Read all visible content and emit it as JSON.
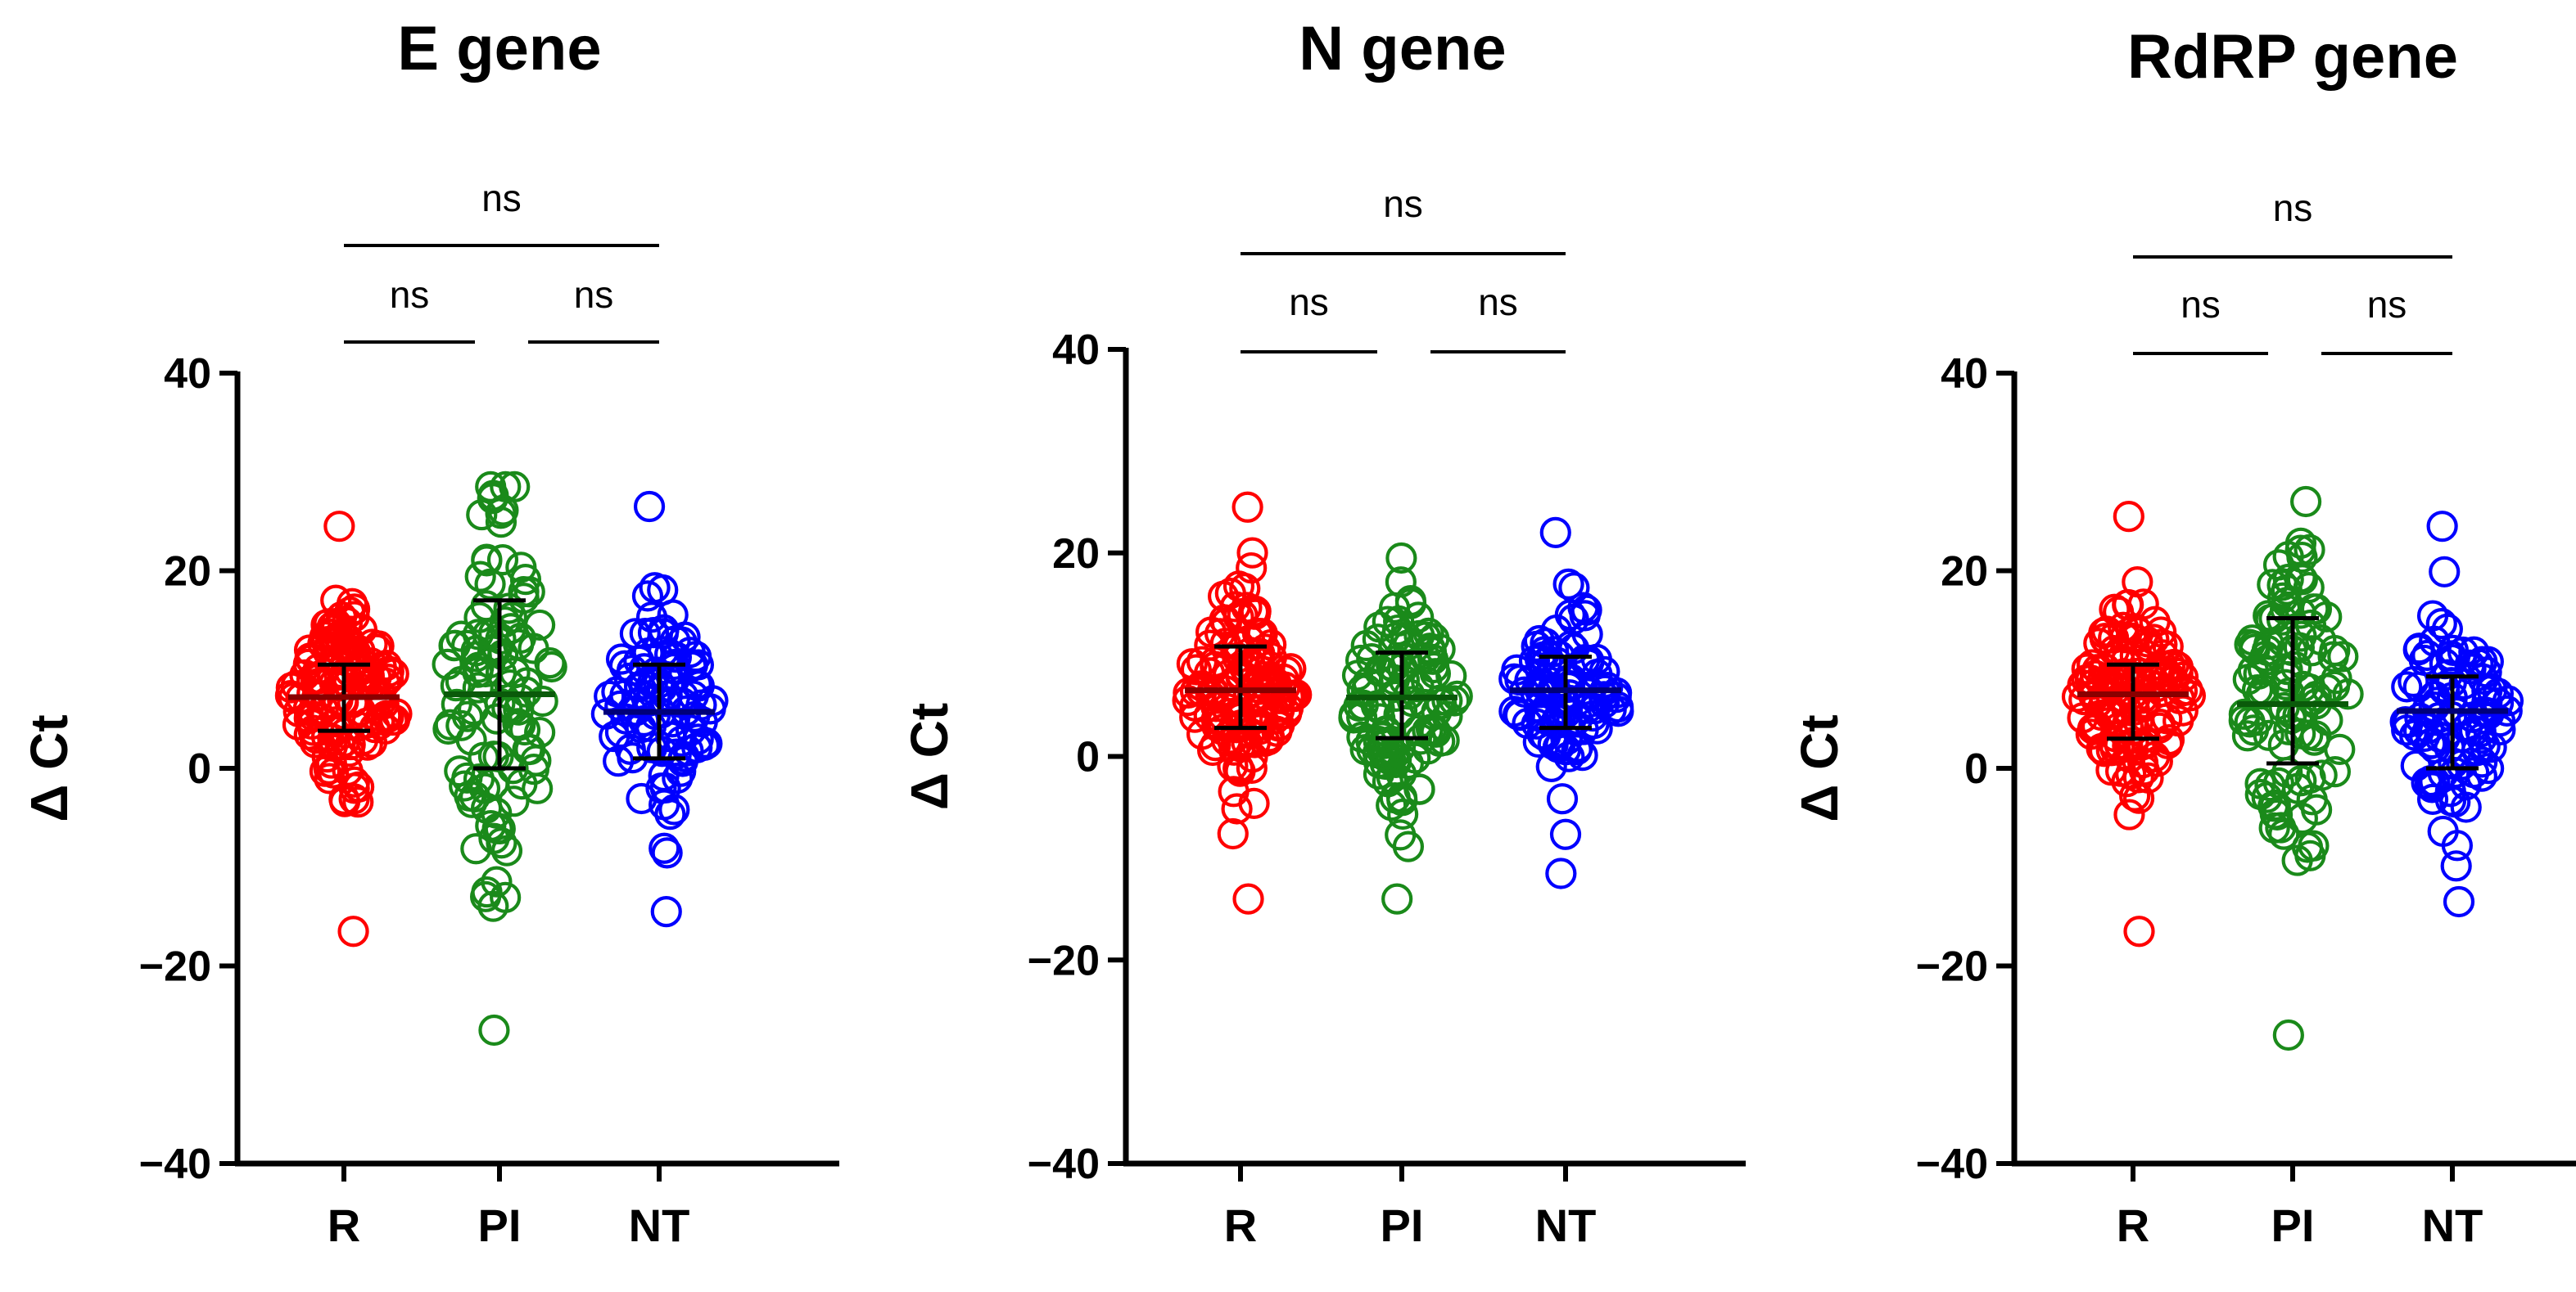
{
  "colors": {
    "R": "#ff0000",
    "PI": "#1a8a1a",
    "NT": "#0000ff",
    "axis": "#000000"
  },
  "chart_data": [
    {
      "type": "scatter",
      "title": "E gene",
      "ylabel": "Δ Ct",
      "ylim": [
        -40,
        40
      ],
      "yticks": [
        40,
        20,
        0,
        -20,
        -40
      ],
      "ytick_labels": [
        "40",
        "20",
        "0",
        "−20",
        "−40"
      ],
      "categories": [
        "R",
        "PI",
        "NT"
      ],
      "groups": [
        {
          "name": "R",
          "mean": 7.2,
          "sd_low": 3.8,
          "sd_high": 10.5,
          "n": 140,
          "min": -16.5,
          "max": 24.5
        },
        {
          "name": "PI",
          "mean": 7.5,
          "sd_low": 0.0,
          "sd_high": 17.0,
          "n": 110,
          "min": -26.5,
          "max": 28.5
        },
        {
          "name": "NT",
          "mean": 5.7,
          "sd_low": 1.0,
          "sd_high": 10.5,
          "n": 100,
          "min": -14.5,
          "max": 26.5
        }
      ],
      "comparisons": [
        {
          "pair": [
            "R",
            "NT"
          ],
          "label": "ns"
        },
        {
          "pair": [
            "R",
            "PI"
          ],
          "label": "ns"
        },
        {
          "pair": [
            "PI",
            "NT"
          ],
          "label": "ns"
        }
      ]
    },
    {
      "type": "scatter",
      "title": "N gene",
      "ylabel": "Δ Ct",
      "ylim": [
        -40,
        40
      ],
      "yticks": [
        40,
        20,
        0,
        -20,
        -40
      ],
      "ytick_labels": [
        "40",
        "20",
        "0",
        "−20",
        "−40"
      ],
      "categories": [
        "R",
        "PI",
        "NT"
      ],
      "groups": [
        {
          "name": "R",
          "mean": 6.5,
          "sd_low": 2.8,
          "sd_high": 10.8,
          "n": 140,
          "min": -14.0,
          "max": 24.5
        },
        {
          "name": "PI",
          "mean": 5.8,
          "sd_low": 1.8,
          "sd_high": 10.2,
          "n": 110,
          "min": -14.0,
          "max": 19.5
        },
        {
          "name": "NT",
          "mean": 6.5,
          "sd_low": 2.8,
          "sd_high": 9.8,
          "n": 100,
          "min": -11.5,
          "max": 22.0
        }
      ],
      "comparisons": [
        {
          "pair": [
            "R",
            "NT"
          ],
          "label": "ns"
        },
        {
          "pair": [
            "R",
            "PI"
          ],
          "label": "ns"
        },
        {
          "pair": [
            "PI",
            "NT"
          ],
          "label": "ns"
        }
      ]
    },
    {
      "type": "scatter",
      "title": "RdRP gene",
      "ylabel": "Δ Ct",
      "ylim": [
        -40,
        40
      ],
      "yticks": [
        40,
        20,
        0,
        -20,
        -40
      ],
      "ytick_labels": [
        "40",
        "20",
        "0",
        "−20",
        "−40"
      ],
      "categories": [
        "R",
        "PI",
        "NT"
      ],
      "groups": [
        {
          "name": "R",
          "mean": 7.5,
          "sd_low": 3.0,
          "sd_high": 10.5,
          "n": 140,
          "min": -16.5,
          "max": 25.5
        },
        {
          "name": "PI",
          "mean": 6.5,
          "sd_low": 0.5,
          "sd_high": 15.2,
          "n": 110,
          "min": -27.0,
          "max": 27.0
        },
        {
          "name": "NT",
          "mean": 5.8,
          "sd_low": 0.0,
          "sd_high": 9.3,
          "n": 100,
          "min": -13.5,
          "max": 24.5
        }
      ],
      "comparisons": [
        {
          "pair": [
            "R",
            "NT"
          ],
          "label": "ns"
        },
        {
          "pair": [
            "R",
            "PI"
          ],
          "label": "ns"
        },
        {
          "pair": [
            "PI",
            "NT"
          ],
          "label": "ns"
        }
      ]
    }
  ]
}
